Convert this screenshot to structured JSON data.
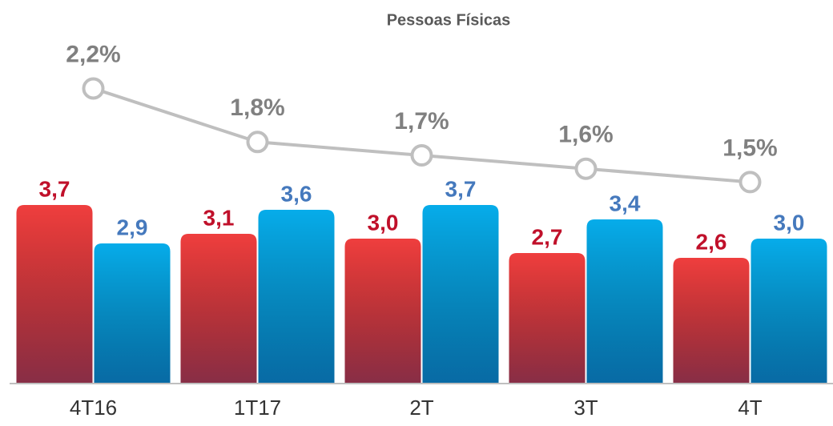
{
  "chart_data": {
    "type": "bar",
    "title": "Pessoas Físicas",
    "categories": [
      "4T16",
      "1T17",
      "2T",
      "3T",
      "4T"
    ],
    "ylim": [
      0,
      7.1
    ],
    "y2lim": [
      0,
      2.55
    ],
    "series": [
      {
        "color": "#ef3e3e",
        "label_color": "#c0102a",
        "values": [
          3.7,
          3.1,
          3.0,
          2.7,
          2.6
        ],
        "value_labels": [
          "3,7",
          "3,1",
          "3,0",
          "2,7",
          "2,6"
        ]
      },
      {
        "color": "#06acea",
        "label_color": "#4579bd",
        "values": [
          2.9,
          3.6,
          3.7,
          3.4,
          3.0
        ],
        "value_labels": [
          "2,9",
          "3,6",
          "3,7",
          "3,4",
          "3,0"
        ]
      },
      {
        "type": "line",
        "axis": "y2",
        "color": "#bfbfbf",
        "label_color": "#808080",
        "values": [
          2.2,
          1.8,
          1.7,
          1.6,
          1.5
        ],
        "value_labels": [
          "2,2%",
          "1,8%",
          "1,7%",
          "1,6%",
          "1,5%"
        ]
      }
    ]
  }
}
